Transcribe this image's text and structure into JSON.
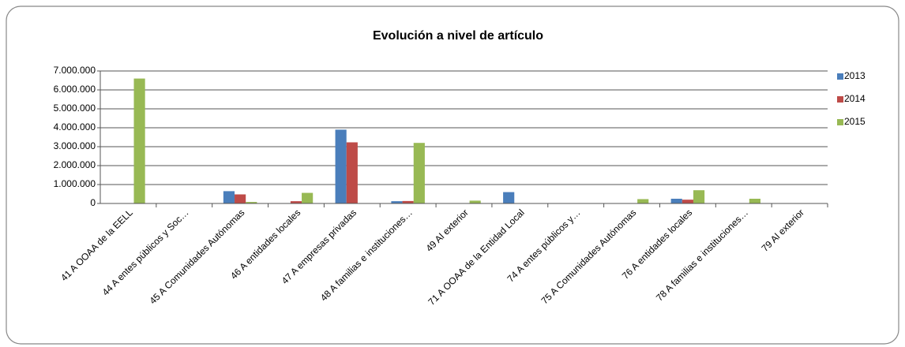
{
  "chart_data": {
    "type": "bar",
    "title": "Evolución a nivel de artículo",
    "categories": [
      "41 A OOAA de la EELL",
      "44 A entes públicos y Soc…",
      "45  A Comunidades Autónomas",
      "46 A entidades locales",
      "47 A empresas privadas",
      "48 A familias e instituciones…",
      "49 Al exterior",
      "71 A OOAA de la Entidad Local",
      "74 A entes públicos y…",
      "75 A Comunidades Autónomas",
      "76  A entidades locales",
      "78 A familias e instituciones…",
      "79 Al exterior"
    ],
    "series": [
      {
        "name": "2013",
        "color": "#4a7ebb",
        "values": [
          0,
          20000,
          650000,
          20000,
          3900000,
          120000,
          0,
          600000,
          0,
          0,
          250000,
          20000,
          0
        ]
      },
      {
        "name": "2014",
        "color": "#be4b48",
        "values": [
          20000,
          20000,
          480000,
          120000,
          3230000,
          130000,
          0,
          20000,
          0,
          0,
          200000,
          20000,
          0
        ]
      },
      {
        "name": "2015",
        "color": "#98b954",
        "values": [
          6600000,
          0,
          80000,
          560000,
          20000,
          3200000,
          150000,
          0,
          0,
          230000,
          700000,
          250000,
          0
        ]
      }
    ],
    "ylim": [
      0,
      7000000
    ],
    "yticks": [
      0,
      {
        "value": 1000000,
        "label": "1.000.000"
      },
      {
        "value": 2000000,
        "label": "2.000.000"
      },
      {
        "value": 3000000,
        "label": "3.000.000"
      },
      {
        "value": 4000000,
        "label": "4.000.000"
      },
      {
        "value": 5000000,
        "label": "5.000.000"
      },
      {
        "value": 6000000,
        "label": "6.000.000"
      },
      {
        "value": 7000000,
        "label": "7.000.000"
      }
    ],
    "grid": true,
    "legend": "right"
  }
}
